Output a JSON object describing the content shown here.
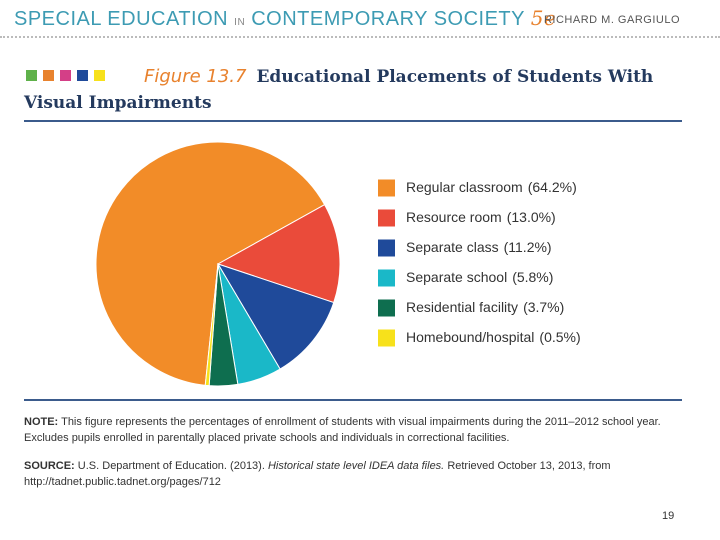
{
  "header": {
    "title_left": "SPECIAL EDUCATION",
    "title_in": "IN",
    "title_right": "CONTEMPORARY SOCIETY",
    "edition": "5e",
    "author": "RICHARD M. GARGIULO"
  },
  "figure_label": "Figure 13.7",
  "chart_data": {
    "type": "pie",
    "title": "Educational Placements of Students With Visual Impairments",
    "categories": [
      "Regular classroom",
      "Resource room",
      "Separate class",
      "Separate school",
      "Residential facility",
      "Homebound/hospital"
    ],
    "values": [
      64.2,
      13.0,
      11.2,
      5.8,
      3.7,
      0.5
    ],
    "value_labels": [
      "(64.2%)",
      "(13.0%)",
      "(11.2%)",
      "(5.8%)",
      "(3.7%)",
      "(0.5%)"
    ],
    "colors": [
      "#f28c28",
      "#ea4b3a",
      "#1f4a9a",
      "#1ab8c8",
      "#0e6e4f",
      "#f7e11b"
    ]
  },
  "note": {
    "label": "NOTE:",
    "text": "This figure represents the percentages of enrollment of students with visual impairments during the 2011–2012 school year. Excludes pupils enrolled in parentally placed private schools and individuals in correctional facilities."
  },
  "source": {
    "label": "SOURCE:",
    "text": "U.S. Department of Education. (2013).",
    "italic": "Historical state level IDEA data files.",
    "rest": "Retrieved October 13, 2013, from http://tadnet.public.tadnet.org/pages/712"
  },
  "page_number": "19"
}
